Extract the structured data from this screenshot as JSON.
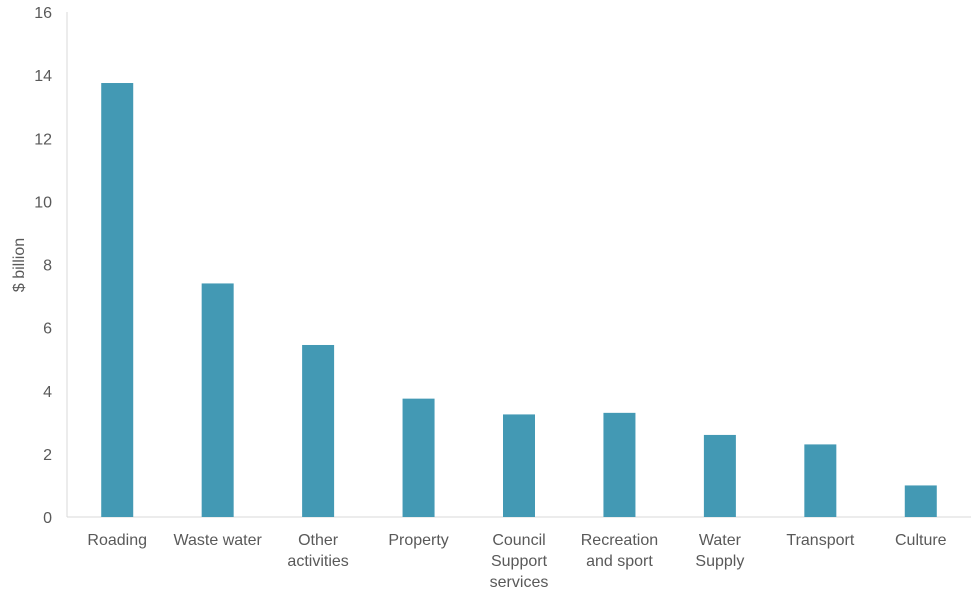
{
  "chart_data": {
    "type": "bar",
    "title": "",
    "xlabel": "",
    "ylabel": "$ billion",
    "ylim": [
      0,
      16
    ],
    "yticks": [
      0,
      2,
      4,
      6,
      8,
      10,
      12,
      14,
      16
    ],
    "grid": false,
    "legend": "none",
    "bar_color": "#4399b4",
    "categories": [
      [
        "Roading"
      ],
      [
        "Waste water"
      ],
      [
        "Other",
        "activities"
      ],
      [
        "Property"
      ],
      [
        "Council",
        "Support",
        "services"
      ],
      [
        "Recreation",
        "and sport"
      ],
      [
        "Water",
        "Supply"
      ],
      [
        "Transport"
      ],
      [
        "Culture"
      ]
    ],
    "values": [
      13.75,
      7.4,
      5.45,
      3.75,
      3.25,
      3.3,
      2.6,
      2.3,
      1.0
    ]
  }
}
